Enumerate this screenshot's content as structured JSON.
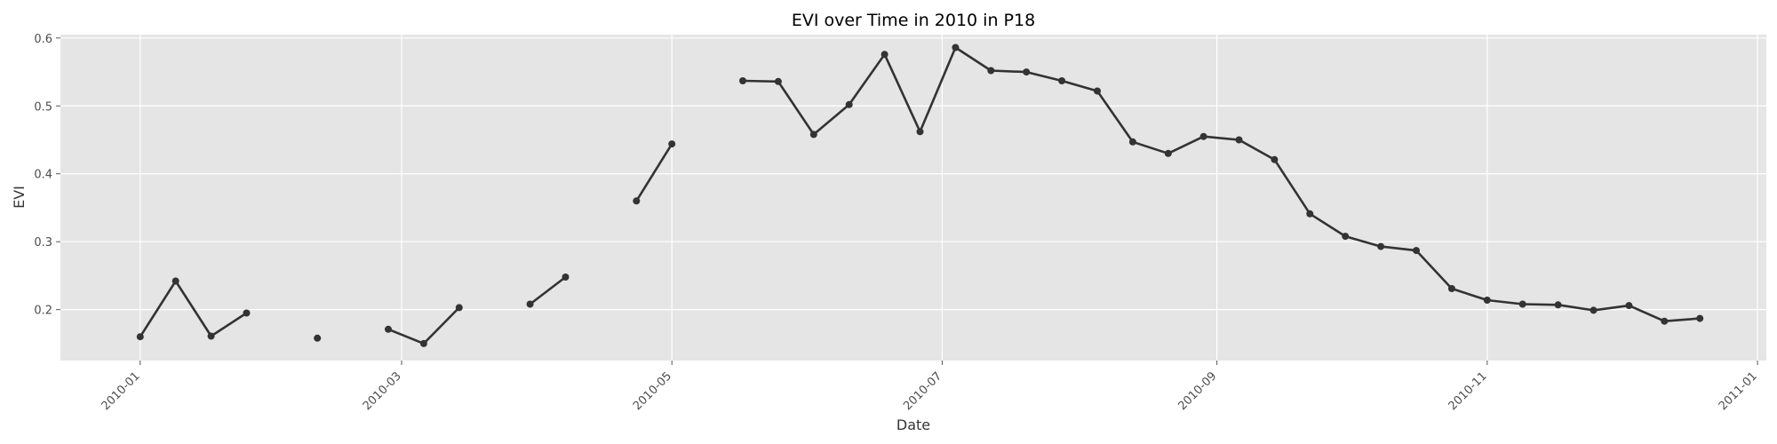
{
  "chart_data": {
    "type": "line",
    "title": "EVI over Time in 2010 in P18",
    "xlabel": "Date",
    "ylabel": "EVI",
    "xlim": [
      "2009-12-14",
      "2011-01-03"
    ],
    "ylim": [
      0.125,
      0.605
    ],
    "x_ticks": [
      "2010-01",
      "2010-03",
      "2010-05",
      "2010-07",
      "2010-09",
      "2010-11",
      "2011-01"
    ],
    "y_ticks": [
      0.2,
      0.3,
      0.4,
      0.5,
      0.6
    ],
    "grid": true,
    "style": {
      "background": "#E5E5E5",
      "grid_color": "#FFFFFF",
      "line_color": "#333333"
    },
    "series": [
      {
        "segments": [
          [
            [
              "2010-01-01",
              0.16
            ],
            [
              "2010-01-09",
              0.242
            ],
            [
              "2010-01-17",
              0.161
            ],
            [
              "2010-01-25",
              0.195
            ]
          ],
          [
            [
              "2010-02-10",
              0.158
            ]
          ],
          [
            [
              "2010-02-26",
              0.171
            ],
            [
              "2010-03-06",
              0.15
            ],
            [
              "2010-03-14",
              0.203
            ]
          ],
          [
            [
              "2010-03-30",
              0.208
            ],
            [
              "2010-04-07",
              0.248
            ]
          ],
          [
            [
              "2010-04-23",
              0.36
            ],
            [
              "2010-05-01",
              0.444
            ]
          ],
          [
            [
              "2010-05-17",
              0.537
            ],
            [
              "2010-05-25",
              0.536
            ],
            [
              "2010-06-02",
              0.458
            ],
            [
              "2010-06-10",
              0.502
            ],
            [
              "2010-06-18",
              0.576
            ],
            [
              "2010-06-26",
              0.462
            ],
            [
              "2010-07-04",
              0.586
            ],
            [
              "2010-07-12",
              0.552
            ],
            [
              "2010-07-20",
              0.55
            ],
            [
              "2010-07-28",
              0.537
            ],
            [
              "2010-08-05",
              0.522
            ],
            [
              "2010-08-13",
              0.447
            ],
            [
              "2010-08-21",
              0.43
            ],
            [
              "2010-08-29",
              0.455
            ],
            [
              "2010-09-06",
              0.45
            ],
            [
              "2010-09-14",
              0.421
            ],
            [
              "2010-09-22",
              0.341
            ],
            [
              "2010-09-30",
              0.308
            ],
            [
              "2010-10-08",
              0.293
            ],
            [
              "2010-10-16",
              0.287
            ],
            [
              "2010-10-24",
              0.231
            ],
            [
              "2010-11-01",
              0.214
            ],
            [
              "2010-11-09",
              0.208
            ],
            [
              "2010-11-17",
              0.207
            ],
            [
              "2010-11-25",
              0.199
            ],
            [
              "2010-12-03",
              0.206
            ],
            [
              "2010-12-11",
              0.183
            ],
            [
              "2010-12-19",
              0.187
            ]
          ]
        ]
      }
    ]
  }
}
